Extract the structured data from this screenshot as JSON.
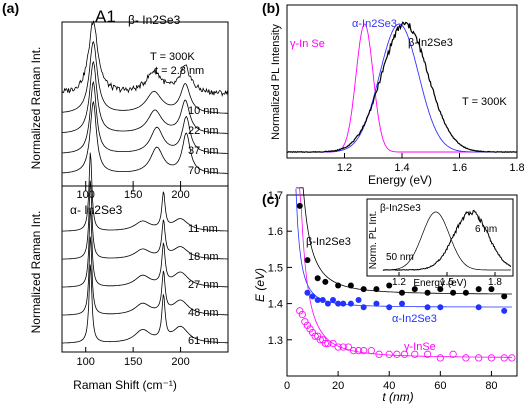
{
  "panel_labels": [
    "(a)",
    "(b)",
    "(c)"
  ],
  "chart_data": [
    {
      "type": "line",
      "title": "",
      "xlabel": "Raman Shift (cm⁻¹)",
      "ylabel_top": "Normalized Raman Int.",
      "ylabel_bottom": "Normalized Raman Int.",
      "xlim": [
        75,
        250
      ],
      "xticks": [
        100,
        150,
        200
      ],
      "peak_label": "A1",
      "annotation_T": "T = 300K",
      "annotation_t": "t = 2.8 nm",
      "top_material": "β- In2Se3",
      "bottom_material": "α- In2Se3",
      "top_series": [
        {
          "name": "2.8 nm",
          "peaks": [
            {
              "c": 108,
              "a": 1.0,
              "w": 6
            },
            {
              "c": 172,
              "a": 0.3,
              "w": 10
            },
            {
              "c": 205,
              "a": 0.35,
              "w": 7
            }
          ]
        },
        {
          "name": "10 nm",
          "peaks": [
            {
              "c": 108,
              "a": 1.0,
              "w": 5
            },
            {
              "c": 172,
              "a": 0.3,
              "w": 10
            },
            {
              "c": 205,
              "a": 0.4,
              "w": 6
            }
          ]
        },
        {
          "name": "22 nm",
          "peaks": [
            {
              "c": 108,
              "a": 1.0,
              "w": 4.5
            },
            {
              "c": 173,
              "a": 0.32,
              "w": 9
            },
            {
              "c": 205,
              "a": 0.45,
              "w": 5.5
            }
          ]
        },
        {
          "name": "37 nm",
          "peaks": [
            {
              "c": 108,
              "a": 1.0,
              "w": 4
            },
            {
              "c": 175,
              "a": 0.36,
              "w": 8
            },
            {
              "c": 206,
              "a": 0.5,
              "w": 5
            }
          ]
        },
        {
          "name": "70 nm",
          "peaks": [
            {
              "c": 108,
              "a": 1.0,
              "w": 4
            },
            {
              "c": 175,
              "a": 0.36,
              "w": 8
            },
            {
              "c": 206,
              "a": 0.55,
              "w": 5
            }
          ]
        }
      ],
      "bottom_series": [
        {
          "name": "11 nm",
          "peaks": [
            {
              "c": 105,
              "a": 1.0,
              "w": 1.8
            },
            {
              "c": 182,
              "a": 0.45,
              "w": 2
            },
            {
              "c": 160,
              "a": 0.12,
              "w": 10
            },
            {
              "c": 200,
              "a": 0.15,
              "w": 10
            }
          ]
        },
        {
          "name": "18 nm",
          "peaks": [
            {
              "c": 105,
              "a": 1.0,
              "w": 1.8
            },
            {
              "c": 182,
              "a": 0.45,
              "w": 2
            },
            {
              "c": 160,
              "a": 0.12,
              "w": 10
            },
            {
              "c": 200,
              "a": 0.15,
              "w": 10
            }
          ]
        },
        {
          "name": "27 nm",
          "peaks": [
            {
              "c": 105,
              "a": 1.0,
              "w": 1.8
            },
            {
              "c": 182,
              "a": 0.5,
              "w": 2
            },
            {
              "c": 160,
              "a": 0.14,
              "w": 10
            },
            {
              "c": 200,
              "a": 0.18,
              "w": 10
            }
          ]
        },
        {
          "name": "48 nm",
          "peaks": [
            {
              "c": 105,
              "a": 1.0,
              "w": 1.8
            },
            {
              "c": 182,
              "a": 0.5,
              "w": 2
            },
            {
              "c": 160,
              "a": 0.14,
              "w": 10
            },
            {
              "c": 200,
              "a": 0.18,
              "w": 10
            }
          ]
        },
        {
          "name": "61 nm",
          "peaks": [
            {
              "c": 105,
              "a": 1.0,
              "w": 1.8
            },
            {
              "c": 182,
              "a": 0.55,
              "w": 2
            },
            {
              "c": 160,
              "a": 0.16,
              "w": 10
            },
            {
              "c": 200,
              "a": 0.2,
              "w": 10
            }
          ]
        }
      ]
    },
    {
      "type": "line",
      "title": "",
      "xlabel": "Energy (eV)",
      "ylabel": "Normalized PL Intensity",
      "xlim": [
        1.0,
        1.8
      ],
      "xticks": [
        1.2,
        1.4,
        1.6,
        1.8
      ],
      "annotation": "T = 300K",
      "colors": {
        "gamma": "#ff00ff",
        "alpha": "#3333ff",
        "beta": "#000000"
      },
      "series": [
        {
          "name": "γ-In Se",
          "center": 1.27,
          "fwhm": 0.07
        },
        {
          "name": "α-In2Se3",
          "center": 1.39,
          "fwhm": 0.16
        },
        {
          "name": "β-In2Se3",
          "center": 1.41,
          "fwhm": 0.19
        }
      ]
    },
    {
      "type": "scatter",
      "title": "",
      "xlabel": "t (nm)",
      "ylabel": "E (eV)",
      "xlim": [
        0,
        90
      ],
      "ylim": [
        1.2,
        1.7
      ],
      "xticks": [
        0,
        20,
        40,
        60,
        80
      ],
      "yticks": [
        1.3,
        1.4,
        1.5,
        1.6,
        1.7
      ],
      "series": [
        {
          "name": "β-In2Se3",
          "color": "#000000",
          "x": [
            5,
            8,
            12,
            15,
            20,
            25,
            30,
            35,
            40,
            45,
            50,
            55,
            60,
            65,
            70,
            75,
            80,
            85
          ],
          "y": [
            1.67,
            1.52,
            1.47,
            1.46,
            1.45,
            1.45,
            1.44,
            1.44,
            1.45,
            1.43,
            1.44,
            1.43,
            1.44,
            1.43,
            1.43,
            1.44,
            1.44,
            1.42
          ],
          "fit_asym": 1.425,
          "fit_amp": 1.2
        },
        {
          "name": "α-In2Se3",
          "color": "#2233ff",
          "x": [
            8,
            10,
            12,
            14,
            16,
            18,
            20,
            22,
            25,
            28,
            30,
            35,
            40,
            45,
            55,
            60,
            75,
            85
          ],
          "y": [
            1.43,
            1.42,
            1.41,
            1.41,
            1.4,
            1.41,
            1.4,
            1.4,
            1.4,
            1.41,
            1.39,
            1.4,
            1.39,
            1.4,
            1.39,
            1.39,
            1.39,
            1.38
          ],
          "fit_asym": 1.39,
          "fit_amp": 0.4
        },
        {
          "name": "γ-InSe",
          "color": "#ff00ff",
          "x": [
            5,
            6,
            7,
            8,
            9,
            10,
            11,
            12,
            13,
            14,
            15,
            16,
            18,
            20,
            22,
            24,
            26,
            28,
            30,
            33,
            36,
            40,
            43,
            46,
            50,
            55,
            60,
            65,
            70,
            75,
            80,
            85,
            88
          ],
          "y": [
            1.38,
            1.37,
            1.35,
            1.34,
            1.33,
            1.32,
            1.31,
            1.31,
            1.3,
            1.3,
            1.29,
            1.29,
            1.29,
            1.28,
            1.28,
            1.28,
            1.27,
            1.27,
            1.27,
            1.27,
            1.26,
            1.26,
            1.26,
            1.26,
            1.26,
            1.26,
            1.25,
            1.26,
            1.25,
            1.25,
            1.25,
            1.25,
            1.25
          ],
          "fit_asym": 1.25,
          "fit_amp": 1.3
        }
      ],
      "inset": {
        "title": "β-In2Se3",
        "xlabel": "Energy (eV)",
        "ylabel": "Norm. PL Int.",
        "xlim": [
          1.1,
          1.9
        ],
        "xticks": [
          1.2,
          1.5,
          1.8
        ],
        "series": [
          {
            "name": "50 nm",
            "center": 1.43,
            "fwhm": 0.2
          },
          {
            "name": "6 nm",
            "center": 1.65,
            "fwhm": 0.25
          }
        ]
      }
    }
  ]
}
